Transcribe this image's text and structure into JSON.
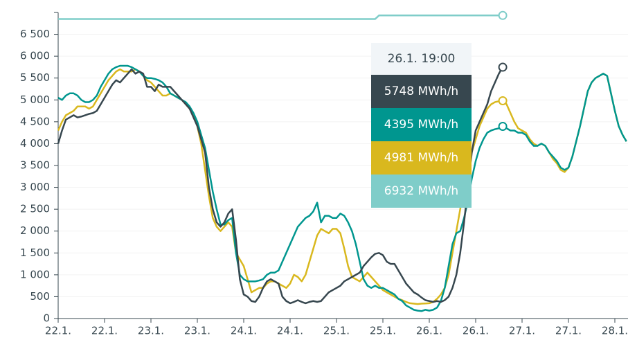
{
  "chart_data": {
    "type": "line",
    "categories": [
      "22.1.",
      null,
      null,
      null,
      null,
      null,
      null,
      null,
      null,
      null,
      null,
      null,
      "22.1.",
      null,
      null,
      null,
      null,
      null,
      null,
      null,
      null,
      null,
      null,
      null,
      "23.1.",
      null,
      null,
      null,
      null,
      null,
      null,
      null,
      null,
      null,
      null,
      null,
      "23.1.",
      null,
      null,
      null,
      null,
      null,
      null,
      null,
      null,
      null,
      null,
      null,
      "24.1.",
      null,
      null,
      null,
      null,
      null,
      null,
      null,
      null,
      null,
      null,
      null,
      "24.1.",
      null,
      null,
      null,
      null,
      null,
      null,
      null,
      null,
      null,
      null,
      null,
      "25.1.",
      null,
      null,
      null,
      null,
      null,
      null,
      null,
      null,
      null,
      null,
      null,
      "25.1.",
      null,
      null,
      null,
      null,
      null,
      null,
      null,
      null,
      null,
      null,
      null,
      "26.1.",
      null,
      null,
      null,
      null,
      null,
      null,
      null,
      null,
      null,
      null,
      null,
      "26.1.",
      null,
      null,
      null,
      null,
      null,
      null,
      null,
      null,
      null,
      null,
      null,
      "27.1.",
      null,
      null,
      null,
      null,
      null,
      null,
      null,
      null,
      null,
      null,
      null,
      "27.1.",
      null,
      null,
      null,
      null,
      null,
      null,
      null,
      null,
      null,
      null,
      null,
      "28.1.",
      null,
      null,
      null
    ],
    "ylim": [
      0,
      7000
    ],
    "yticks": [
      0,
      500,
      {
        "value": 1000,
        "label": "1 000"
      },
      {
        "value": 1500,
        "label": "1 500"
      },
      {
        "value": 2000,
        "label": "2 000"
      },
      {
        "value": 2500,
        "label": "2 500"
      },
      {
        "value": 3000,
        "label": "3 000"
      },
      {
        "value": 3500,
        "label": "3 500"
      },
      {
        "value": 4000,
        "label": "4 000"
      },
      {
        "value": 4500,
        "label": "4 500"
      },
      {
        "value": 5000,
        "label": "5 000"
      },
      {
        "value": 5500,
        "label": "5 500"
      },
      {
        "value": 6000,
        "label": "6 000"
      },
      {
        "value": 6500,
        "label": "6 500"
      }
    ],
    "grid": true,
    "series": [
      {
        "color": "#37474f",
        "values": [
          4000,
          4300,
          4550,
          4600,
          4650,
          4600,
          4620,
          4650,
          4680,
          4700,
          4750,
          4900,
          5050,
          5200,
          5350,
          5450,
          5400,
          5500,
          5600,
          5700,
          5600,
          5650,
          5600,
          5300,
          5300,
          5200,
          5350,
          5300,
          5300,
          5300,
          5200,
          5100,
          5000,
          4900,
          4800,
          4600,
          4400,
          4100,
          3800,
          3000,
          2500,
          2200,
          2100,
          2200,
          2400,
          2500,
          1800,
          900,
          550,
          500,
          400,
          380,
          500,
          700,
          850,
          900,
          850,
          800,
          500,
          400,
          350,
          380,
          420,
          380,
          350,
          380,
          400,
          380,
          400,
          500,
          600,
          650,
          700,
          750,
          850,
          900,
          950,
          1000,
          1050,
          1200,
          1300,
          1400,
          1480,
          1500,
          1450,
          1300,
          1250,
          1250,
          1100,
          950,
          800,
          700,
          600,
          550,
          480,
          420,
          400,
          380,
          400,
          380,
          420,
          500,
          700,
          1000,
          1500,
          2200,
          3000,
          3800,
          4300,
          4500,
          4700,
          4900,
          5200,
          5400,
          5600,
          5748,
          null,
          null,
          null,
          null,
          null,
          null,
          null,
          null,
          null,
          null,
          null,
          null,
          null,
          null,
          null,
          null,
          null,
          null,
          null,
          null,
          null,
          null,
          null,
          null,
          null,
          null,
          null,
          null,
          null,
          null,
          null,
          null
        ]
      },
      {
        "color": "#00968f",
        "values": [
          5050,
          5000,
          5100,
          5150,
          5150,
          5100,
          5000,
          4950,
          4950,
          5000,
          5100,
          5300,
          5450,
          5600,
          5700,
          5750,
          5780,
          5780,
          5780,
          5750,
          5700,
          5650,
          5550,
          5500,
          5500,
          5480,
          5450,
          5400,
          5300,
          5150,
          5100,
          5050,
          5000,
          4950,
          4850,
          4700,
          4500,
          4200,
          3900,
          3400,
          2900,
          2500,
          2150,
          2150,
          2250,
          2300,
          1500,
          1000,
          900,
          850,
          850,
          850,
          870,
          900,
          1000,
          1050,
          1050,
          1100,
          1300,
          1500,
          1700,
          1900,
          2100,
          2200,
          2300,
          2350,
          2450,
          2650,
          2200,
          2350,
          2350,
          2300,
          2300,
          2400,
          2350,
          2200,
          2000,
          1700,
          1300,
          900,
          750,
          700,
          750,
          700,
          700,
          650,
          600,
          550,
          450,
          400,
          300,
          250,
          200,
          180,
          170,
          200,
          180,
          200,
          250,
          400,
          700,
          1200,
          1700,
          1950,
          2000,
          2300,
          2700,
          3200,
          3600,
          3900,
          4100,
          4250,
          4300,
          4330,
          4350,
          4395,
          4350,
          4300,
          4300,
          4250,
          4250,
          4200,
          4050,
          3950,
          3950,
          4000,
          3950,
          3800,
          3700,
          3600,
          3450,
          3400,
          3450,
          3700,
          4050,
          4400,
          4800,
          5200,
          5400,
          5500,
          5550,
          5600,
          5550,
          5150,
          4750,
          4400,
          4200,
          4050
        ]
      },
      {
        "color": "#d9b81e",
        "values": [
          4300,
          4500,
          4650,
          4700,
          4750,
          4850,
          4850,
          4850,
          4800,
          4850,
          5000,
          5150,
          5300,
          5450,
          5550,
          5650,
          5700,
          5650,
          5650,
          5650,
          5700,
          5650,
          5550,
          5450,
          5400,
          5300,
          5200,
          5100,
          5100,
          5150,
          5100,
          5050,
          5000,
          4900,
          4800,
          4650,
          4400,
          4000,
          3400,
          2800,
          2300,
          2100,
          2000,
          2100,
          2200,
          2100,
          1500,
          1350,
          1200,
          900,
          600,
          650,
          700,
          700,
          800,
          850,
          850,
          800,
          750,
          700,
          800,
          1000,
          950,
          850,
          1000,
          1300,
          1600,
          1900,
          2050,
          2000,
          1950,
          2050,
          2050,
          1950,
          1600,
          1200,
          950,
          900,
          850,
          950,
          1050,
          950,
          850,
          750,
          650,
          600,
          550,
          500,
          450,
          420,
          380,
          350,
          340,
          330,
          340,
          345,
          350,
          380,
          450,
          550,
          700,
          1000,
          1500,
          2000,
          2500,
          3000,
          3400,
          3800,
          4100,
          4400,
          4600,
          4800,
          4900,
          4950,
          4970,
          4981,
          4900,
          4700,
          4500,
          4350,
          4300,
          4250,
          4100,
          4000,
          3950,
          4000,
          3950,
          3800,
          3650,
          3550,
          3400,
          3350,
          3450,
          3700,
          4050,
          4400,
          4800,
          5200,
          5400,
          5500,
          5550,
          5600,
          5550,
          5150,
          4750,
          4400,
          4200,
          4050
        ]
      },
      {
        "color": "#7fcdc9",
        "values": [
          6850,
          6850,
          6850,
          6850,
          6850,
          6850,
          6850,
          6850,
          6850,
          6850,
          6850,
          6850,
          6850,
          6850,
          6850,
          6850,
          6850,
          6850,
          6850,
          6850,
          6850,
          6850,
          6850,
          6850,
          6850,
          6850,
          6850,
          6850,
          6850,
          6850,
          6850,
          6850,
          6850,
          6850,
          6850,
          6850,
          6850,
          6850,
          6850,
          6850,
          6850,
          6850,
          6850,
          6850,
          6850,
          6850,
          6850,
          6850,
          6850,
          6850,
          6850,
          6850,
          6850,
          6850,
          6850,
          6850,
          6850,
          6850,
          6850,
          6850,
          6850,
          6850,
          6850,
          6850,
          6850,
          6850,
          6850,
          6850,
          6850,
          6850,
          6850,
          6850,
          6850,
          6850,
          6850,
          6850,
          6850,
          6850,
          6850,
          6850,
          6850,
          6850,
          6850,
          6932,
          6932,
          6932,
          6932,
          6932,
          6932,
          6932,
          6932,
          6932,
          6932,
          6932,
          6932,
          6932,
          6932,
          6932,
          6932,
          6932,
          6932,
          6932,
          6932,
          6932,
          6932,
          6932,
          6932,
          6932,
          6932,
          6932,
          6932,
          6932,
          6932,
          6932,
          6932,
          6932,
          null,
          null,
          null,
          null,
          null,
          null,
          null,
          null,
          null,
          null,
          null,
          null,
          null,
          null,
          null,
          null,
          null,
          null,
          null,
          null,
          null,
          null,
          null,
          null,
          null,
          null,
          null,
          null,
          null,
          null,
          null,
          null
        ]
      }
    ],
    "tooltip": {
      "title": "26.1. 19:00",
      "items": [
        "5748 MWh/h",
        "4395 MWh/h",
        "4981 MWh/h",
        "6932 MWh/h"
      ]
    }
  }
}
